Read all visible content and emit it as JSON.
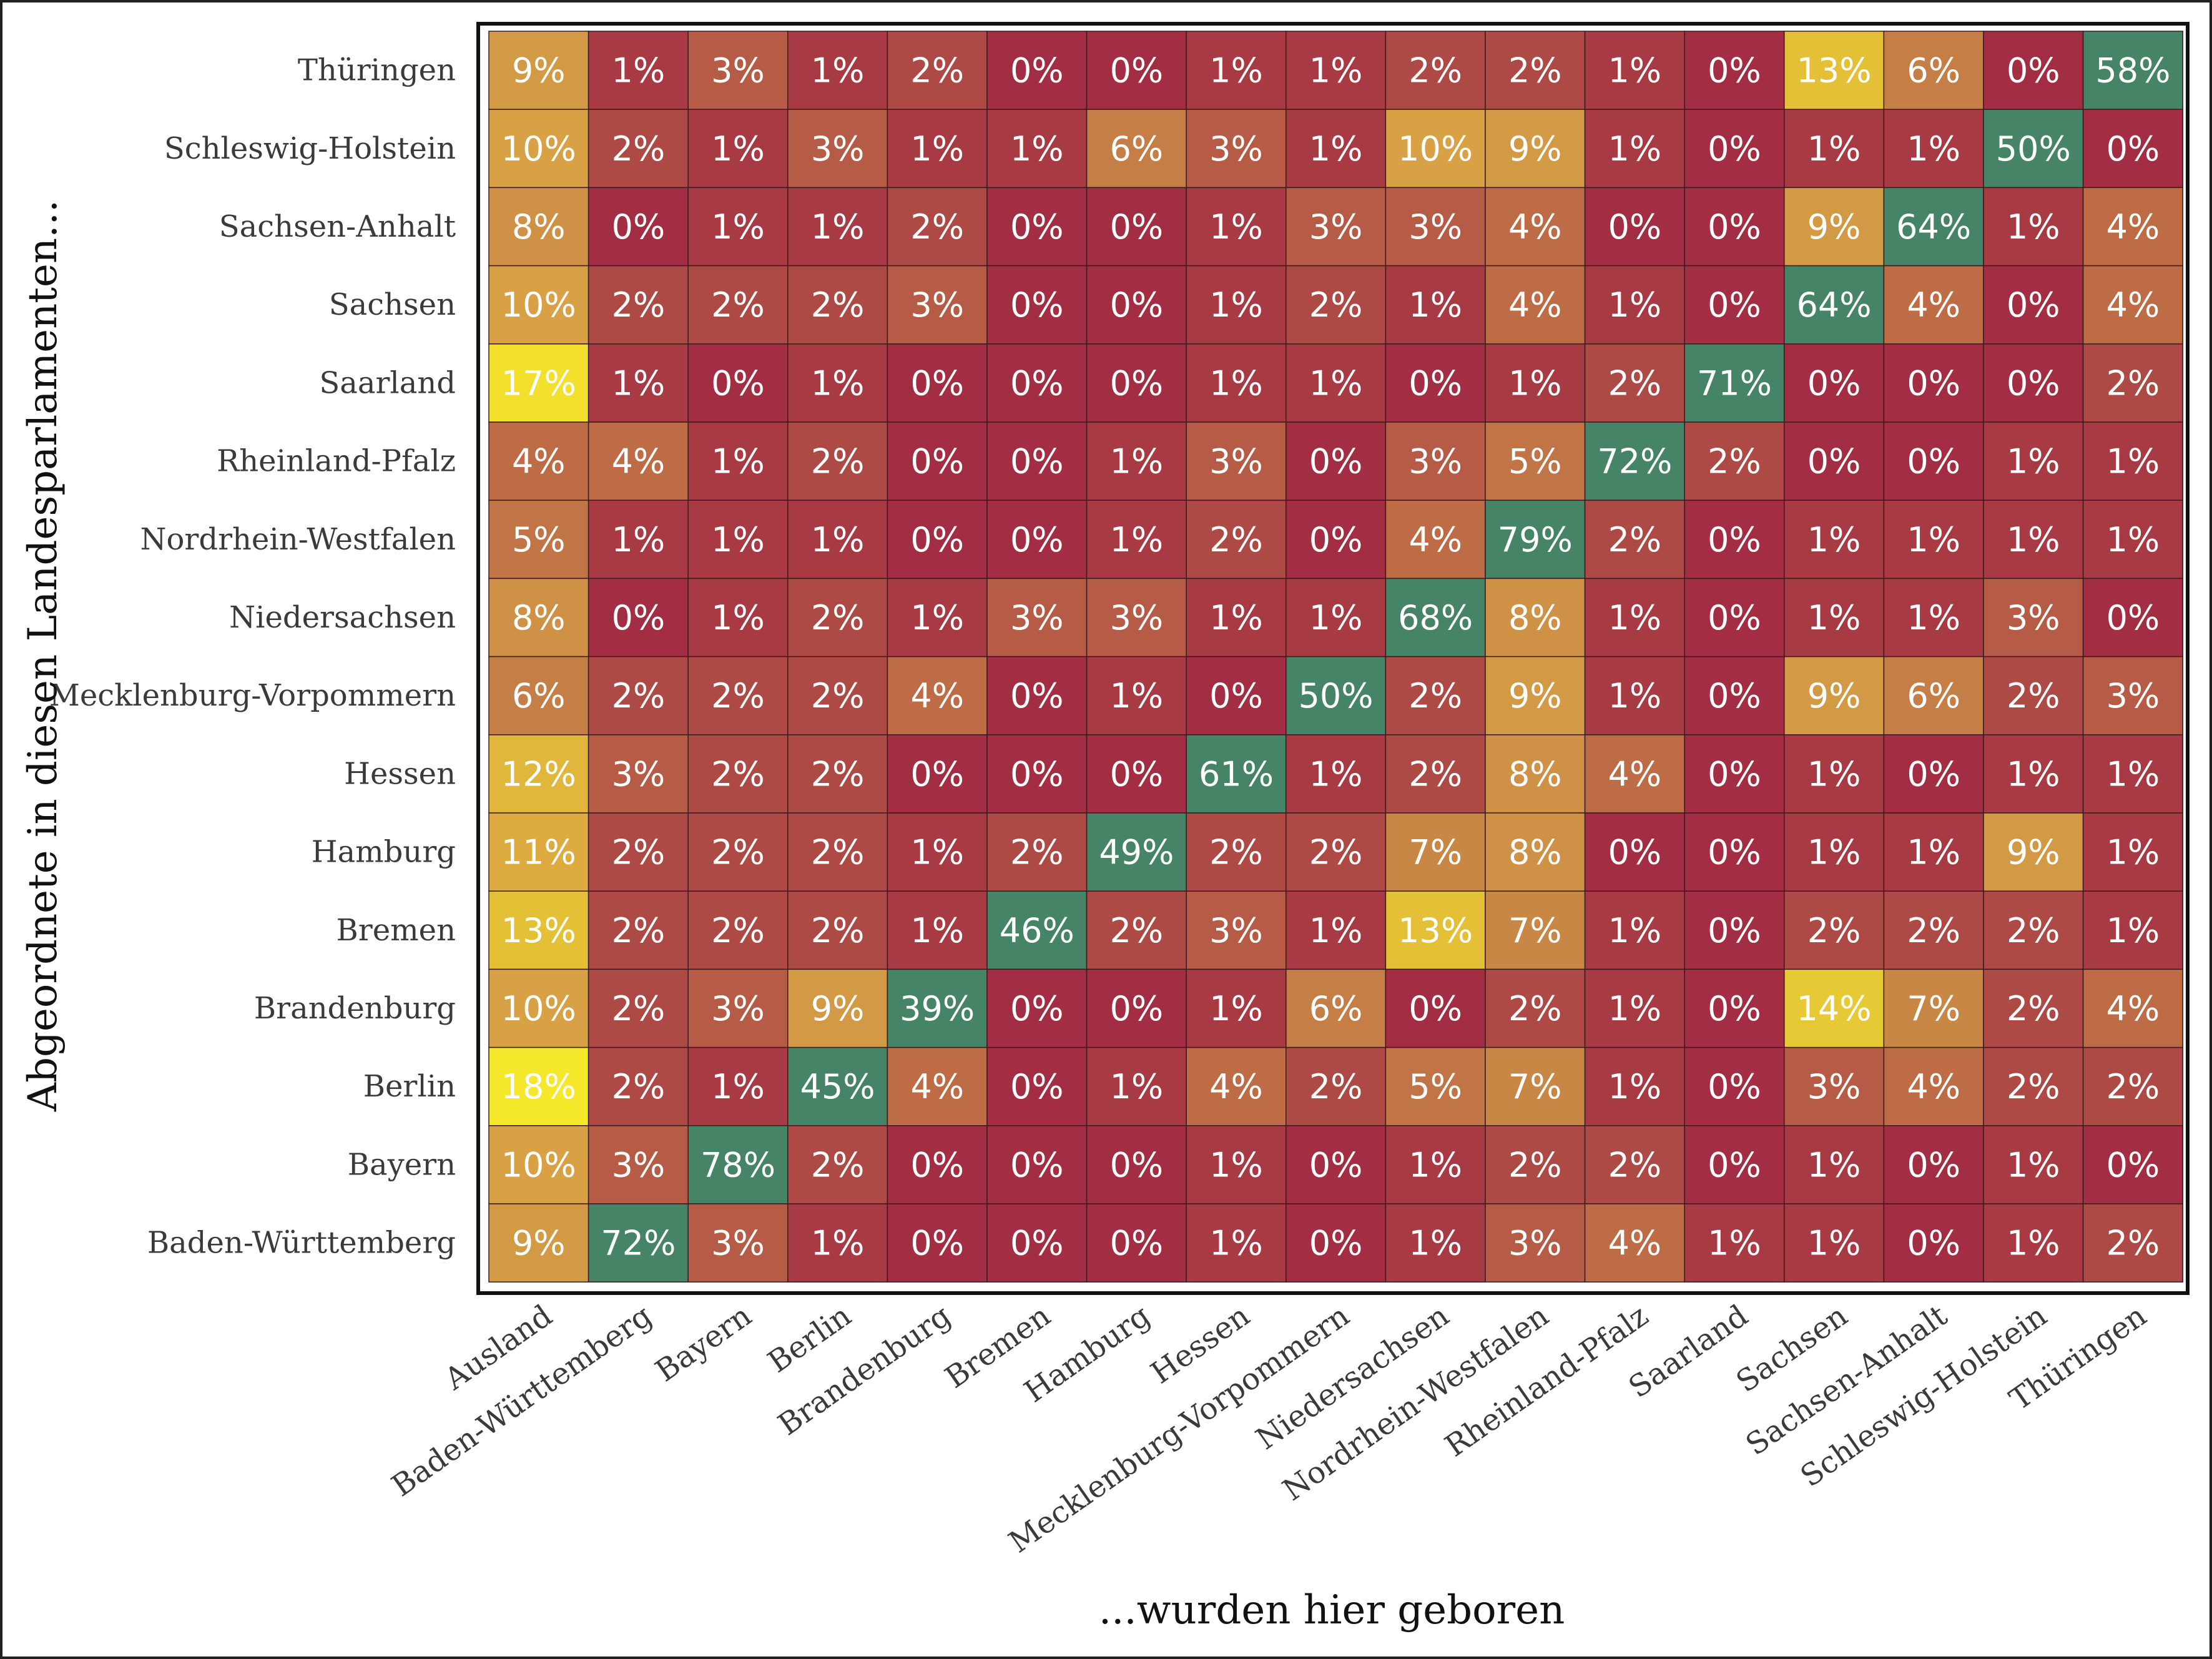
{
  "chart_data": {
    "type": "heatmap",
    "xlabel": "...wurden hier geboren",
    "ylabel": "Abgeordnete in diesen Landesparlamenten...",
    "unit": "%",
    "columns": [
      "Ausland",
      "Baden-Württemberg",
      "Bayern",
      "Berlin",
      "Brandenburg",
      "Bremen",
      "Hamburg",
      "Hessen",
      "Mecklenburg-Vorpommern",
      "Niedersachsen",
      "Nordrhein-Westfalen",
      "Rheinland-Pfalz",
      "Saarland",
      "Sachsen",
      "Sachsen-Anhalt",
      "Schleswig-Holstein",
      "Thüringen"
    ],
    "rows": [
      "Thüringen",
      "Schleswig-Holstein",
      "Sachsen-Anhalt",
      "Sachsen",
      "Saarland",
      "Rheinland-Pfalz",
      "Nordrhein-Westfalen",
      "Niedersachsen",
      "Mecklenburg-Vorpommern",
      "Hessen",
      "Hamburg",
      "Bremen",
      "Brandenburg",
      "Berlin",
      "Bayern",
      "Baden-Württemberg"
    ],
    "values": [
      [
        9,
        1,
        3,
        1,
        2,
        0,
        0,
        1,
        1,
        2,
        2,
        1,
        0,
        13,
        6,
        0,
        58
      ],
      [
        10,
        2,
        1,
        3,
        1,
        1,
        6,
        3,
        1,
        10,
        9,
        1,
        0,
        1,
        1,
        50,
        0
      ],
      [
        8,
        0,
        1,
        1,
        2,
        0,
        0,
        1,
        3,
        3,
        4,
        0,
        0,
        9,
        64,
        1,
        4
      ],
      [
        10,
        2,
        2,
        2,
        3,
        0,
        0,
        1,
        2,
        1,
        4,
        1,
        0,
        64,
        4,
        0,
        4
      ],
      [
        17,
        1,
        0,
        1,
        0,
        0,
        0,
        1,
        1,
        0,
        1,
        2,
        71,
        0,
        0,
        0,
        2
      ],
      [
        4,
        4,
        1,
        2,
        0,
        0,
        1,
        3,
        0,
        3,
        5,
        72,
        2,
        0,
        0,
        1,
        1
      ],
      [
        5,
        1,
        1,
        1,
        0,
        0,
        1,
        2,
        0,
        4,
        79,
        2,
        0,
        1,
        1,
        1,
        1
      ],
      [
        8,
        0,
        1,
        2,
        1,
        3,
        3,
        1,
        1,
        68,
        8,
        1,
        0,
        1,
        1,
        3,
        0
      ],
      [
        6,
        2,
        2,
        2,
        4,
        0,
        1,
        0,
        50,
        2,
        9,
        1,
        0,
        9,
        6,
        2,
        3
      ],
      [
        12,
        3,
        2,
        2,
        0,
        0,
        0,
        61,
        1,
        2,
        8,
        4,
        0,
        1,
        0,
        1,
        1
      ],
      [
        11,
        2,
        2,
        2,
        1,
        2,
        49,
        2,
        2,
        7,
        8,
        0,
        0,
        1,
        1,
        9,
        1
      ],
      [
        13,
        2,
        2,
        2,
        1,
        46,
        2,
        3,
        1,
        13,
        7,
        1,
        0,
        2,
        2,
        2,
        1
      ],
      [
        10,
        2,
        3,
        9,
        39,
        0,
        0,
        1,
        6,
        0,
        2,
        1,
        0,
        14,
        7,
        2,
        4
      ],
      [
        18,
        2,
        1,
        45,
        4,
        0,
        1,
        4,
        2,
        5,
        7,
        1,
        0,
        3,
        4,
        2,
        2
      ],
      [
        10,
        3,
        78,
        2,
        0,
        0,
        0,
        1,
        0,
        1,
        2,
        2,
        0,
        1,
        0,
        1,
        0
      ],
      [
        9,
        72,
        3,
        1,
        0,
        0,
        0,
        1,
        0,
        1,
        3,
        4,
        1,
        1,
        0,
        1,
        2
      ]
    ],
    "color_scale": {
      "diagonal": "#458466",
      "stops": [
        {
          "value": 0,
          "color": "#a32d43"
        },
        {
          "value": 1,
          "color": "#a83a44"
        },
        {
          "value": 2,
          "color": "#ae4a45"
        },
        {
          "value": 3,
          "color": "#b65c46"
        },
        {
          "value": 4,
          "color": "#bd6c46"
        },
        {
          "value": 6,
          "color": "#c57e46"
        },
        {
          "value": 7,
          "color": "#c98746"
        },
        {
          "value": 9,
          "color": "#d29a45"
        },
        {
          "value": 10,
          "color": "#d9a145"
        },
        {
          "value": 13,
          "color": "#e4c037"
        },
        {
          "value": 18,
          "color": "#f5e82b"
        }
      ]
    }
  }
}
